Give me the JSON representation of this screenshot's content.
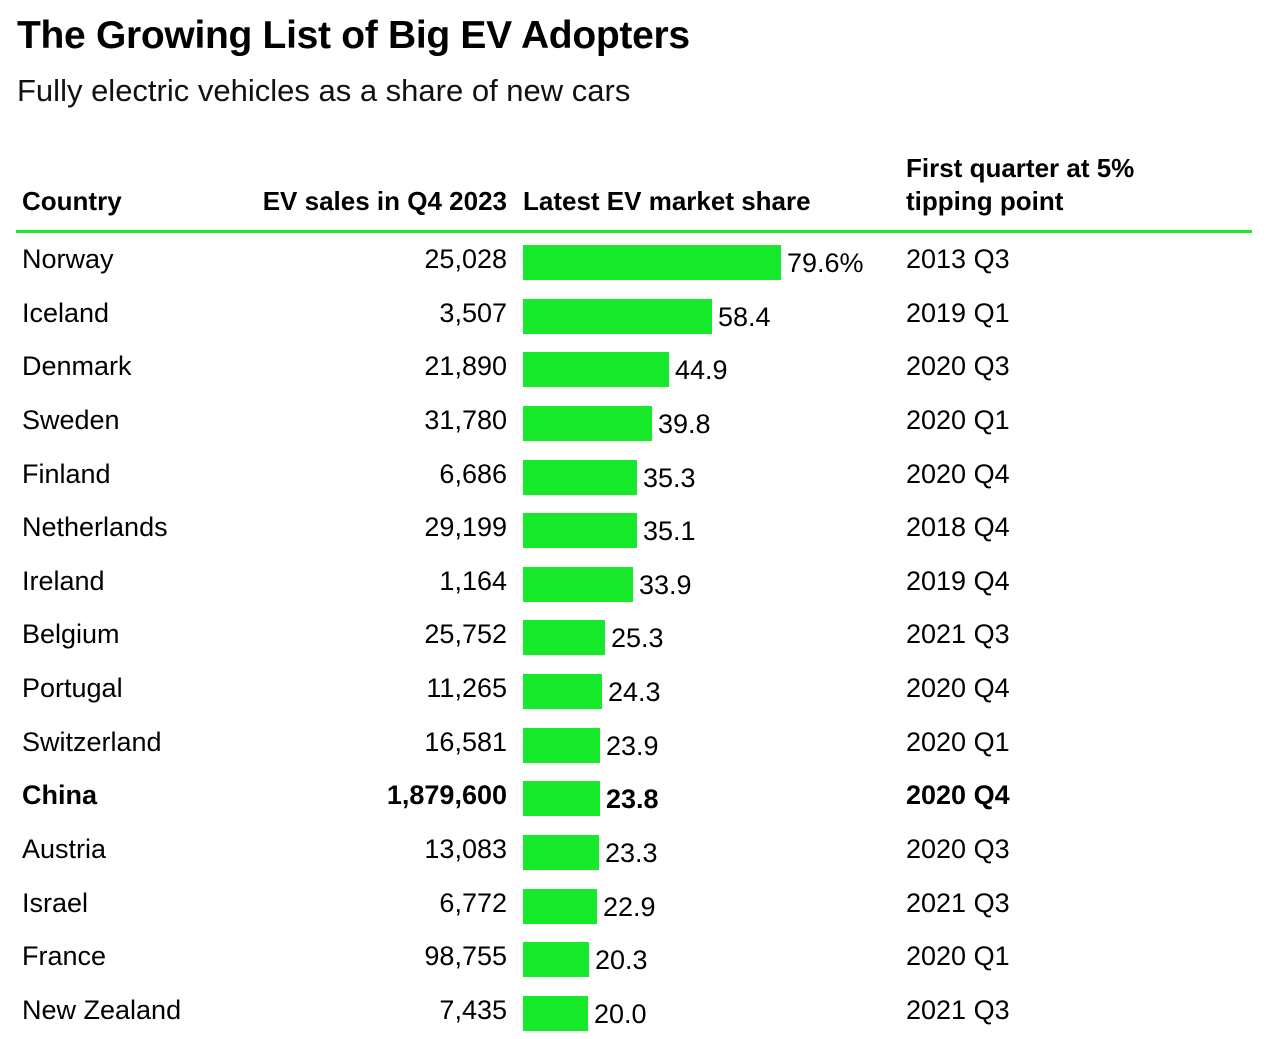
{
  "title": "The Growing List of Big EV Adopters",
  "subtitle": "Fully electric vehicles as a share of new cars",
  "headers": {
    "country": "Country",
    "sales": "EV sales in Q4 2023",
    "share": "Latest EV market share",
    "tipping_line1": "First quarter at 5%",
    "tipping_line2": "tipping point"
  },
  "colors": {
    "bar": "#17e92b",
    "rule": "#17e92b",
    "text": "#000000"
  },
  "chart_data": {
    "type": "table",
    "title": "The Growing List of Big EV Adopters",
    "subtitle": "Fully electric vehicles as a share of new cars",
    "columns": [
      "Country",
      "EV sales in Q4 2023",
      "Latest EV market share",
      "First quarter at 5% tipping point"
    ],
    "share_unit": "%",
    "share_max": 79.6,
    "rows": [
      {
        "country": "Norway",
        "sales": "25,028",
        "share": 79.6,
        "share_label": "79.6%",
        "tipping": "2013 Q3",
        "highlight": false
      },
      {
        "country": "Iceland",
        "sales": "3,507",
        "share": 58.4,
        "share_label": "58.4",
        "tipping": "2019 Q1",
        "highlight": false
      },
      {
        "country": "Denmark",
        "sales": "21,890",
        "share": 44.9,
        "share_label": "44.9",
        "tipping": "2020 Q3",
        "highlight": false
      },
      {
        "country": "Sweden",
        "sales": "31,780",
        "share": 39.8,
        "share_label": "39.8",
        "tipping": "2020 Q1",
        "highlight": false
      },
      {
        "country": "Finland",
        "sales": "6,686",
        "share": 35.3,
        "share_label": "35.3",
        "tipping": "2020 Q4",
        "highlight": false
      },
      {
        "country": "Netherlands",
        "sales": "29,199",
        "share": 35.1,
        "share_label": "35.1",
        "tipping": "2018 Q4",
        "highlight": false
      },
      {
        "country": "Ireland",
        "sales": "1,164",
        "share": 33.9,
        "share_label": "33.9",
        "tipping": "2019 Q4",
        "highlight": false
      },
      {
        "country": "Belgium",
        "sales": "25,752",
        "share": 25.3,
        "share_label": "25.3",
        "tipping": "2021 Q3",
        "highlight": false
      },
      {
        "country": "Portugal",
        "sales": "11,265",
        "share": 24.3,
        "share_label": "24.3",
        "tipping": "2020 Q4",
        "highlight": false
      },
      {
        "country": "Switzerland",
        "sales": "16,581",
        "share": 23.9,
        "share_label": "23.9",
        "tipping": "2020 Q1",
        "highlight": false
      },
      {
        "country": "China",
        "sales": "1,879,600",
        "share": 23.8,
        "share_label": "23.8",
        "tipping": "2020 Q4",
        "highlight": true
      },
      {
        "country": "Austria",
        "sales": "13,083",
        "share": 23.3,
        "share_label": "23.3",
        "tipping": "2020 Q3",
        "highlight": false
      },
      {
        "country": "Israel",
        "sales": "6,772",
        "share": 22.9,
        "share_label": "22.9",
        "tipping": "2021 Q3",
        "highlight": false
      },
      {
        "country": "France",
        "sales": "98,755",
        "share": 20.3,
        "share_label": "20.3",
        "tipping": "2020 Q1",
        "highlight": false
      },
      {
        "country": "New Zealand",
        "sales": "7,435",
        "share": 20.0,
        "share_label": "20.0",
        "tipping": "2021 Q3",
        "highlight": false
      }
    ]
  }
}
